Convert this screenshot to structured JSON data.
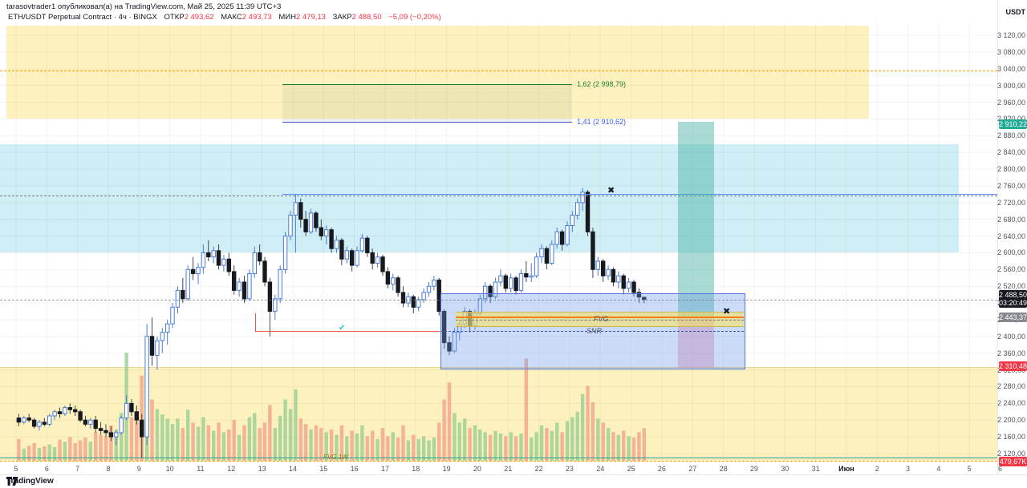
{
  "header": {
    "published": "tarasovtrader1 опубликовал(а) на TradingView.com, Май 25, 2025 11:39 UTC+3",
    "legend": {
      "symbol_line": "ETH/USDT Perpetual Contract · 4ч · BINGX",
      "open_label": "ОТКР",
      "open": "2 493,62",
      "high_label": "МАКС",
      "high": "2 493,73",
      "low_label": "МИН",
      "low": "2 479,13",
      "close_label": "ЗАКР",
      "close": "2 488,50",
      "change": "−5,09 (−0,20%)"
    }
  },
  "price_axis": {
    "currency": "USDT",
    "ticks": [
      {
        "p": 3120,
        "label": "3 120,00"
      },
      {
        "p": 3080,
        "label": "3 080,00"
      },
      {
        "p": 3040,
        "label": "3 040,00"
      },
      {
        "p": 3000,
        "label": "3 000,00"
      },
      {
        "p": 2960,
        "label": "2 960,00"
      },
      {
        "p": 2920,
        "label": "2 920,00"
      },
      {
        "p": 2880,
        "label": "2 880,00"
      },
      {
        "p": 2840,
        "label": "2 840,00"
      },
      {
        "p": 2800,
        "label": "2 800,00"
      },
      {
        "p": 2760,
        "label": "2 760,00"
      },
      {
        "p": 2720,
        "label": "2 720,00"
      },
      {
        "p": 2680,
        "label": "2 680,00"
      },
      {
        "p": 2640,
        "label": "2 640,00"
      },
      {
        "p": 2600,
        "label": "2 600,00"
      },
      {
        "p": 2560,
        "label": "2 560,00"
      },
      {
        "p": 2520,
        "label": "2 520,00"
      },
      {
        "p": 2480,
        "label": "2 480,00"
      },
      {
        "p": 2440,
        "label": "2 440,00"
      },
      {
        "p": 2400,
        "label": "2 400,00"
      },
      {
        "p": 2360,
        "label": "2 360,00"
      },
      {
        "p": 2320,
        "label": "2 320,00"
      },
      {
        "p": 2280,
        "label": "2 280,00"
      },
      {
        "p": 2240,
        "label": "2 240,00"
      },
      {
        "p": 2200,
        "label": "2 200,00"
      },
      {
        "p": 2160,
        "label": "2 160,00"
      },
      {
        "p": 2120,
        "label": "2 120,00"
      }
    ],
    "badges": [
      {
        "label": "2 910,22",
        "bg": "#22ab94",
        "y": 149
      },
      {
        "label": "2 488,50",
        "sub": "03:20:49",
        "bg": "#15181e",
        "y": 362
      },
      {
        "label": "2 443,37",
        "bg": "#85888f",
        "y": 390
      },
      {
        "label": "2 310,48",
        "bg": "#f23645",
        "y": 451
      },
      {
        "label": "479,67K",
        "bg": "#f23645",
        "y": 570
      }
    ]
  },
  "time_axis": {
    "labels": [
      "5",
      "6",
      "7",
      "8",
      "9",
      "10",
      "11",
      "12",
      "13",
      "14",
      "15",
      "16",
      "17",
      "18",
      "19",
      "20",
      "21",
      "22",
      "23",
      "24",
      "25",
      "26",
      "27",
      "28",
      "29",
      "30",
      "31",
      "Июн",
      "2",
      "3",
      "4",
      "5",
      "6"
    ]
  },
  "drawings": {
    "fib_162": "1,62 (2 998,79)",
    "fib_141": "1,41 (2 910,62)",
    "fvg": "FVG",
    "snr": "SNR",
    "fvg1w": "FVG 1W",
    "cross": "✖",
    "check": "✔"
  },
  "footer": {
    "brand": "TradingView"
  },
  "colors": {
    "up_body": "#ffffff",
    "up_border": "#4a7bd5",
    "down_body": "#17191f",
    "down_wick": "#42464e",
    "vol_up": "#97cf94",
    "vol_down": "#f2a38d",
    "zone_yellow": "rgba(250,225,110,0.45)",
    "zone_cyan": "rgba(140,215,230,0.42)",
    "box_blue": "rgba(110,155,235,0.35)",
    "box_border": "#5577dd",
    "band_green": "rgba(64,175,160,0.45)",
    "band_pink": "rgba(230,120,160,0.42)",
    "fvg_fill": "rgba(252,228,88,0.55)",
    "fvg_edge": "#cdb64d",
    "fvg_center": "#f57f17",
    "snr_dash": "#3f51b5",
    "red_line": "#ef5350",
    "teal_line": "#2a9d8f",
    "orange_dash": "#f59b00",
    "gray_dash": "#787b86",
    "tp_badge": "#22ab94",
    "entry_badge": "#85888f",
    "sl_badge": "#f23645",
    "last_badge": "#15181e"
  },
  "chart_data": {
    "type": "candlestick",
    "title": "ETH/USDT Perpetual Contract",
    "interval": "4h",
    "exchange": "BINGX",
    "x_range": [
      "Май 5 2025",
      "Июн 6 2025"
    ],
    "y_range_usdt": [
      2120,
      3120
    ],
    "grid": true,
    "last": {
      "open": 2493.62,
      "high": 2493.73,
      "low": 2479.13,
      "close": 2488.5,
      "change": "-5,09 (-0,20%)",
      "countdown": "03:20:49"
    },
    "annotations": {
      "fib_extension_162": 2998.79,
      "fib_extension_141": 2910.62,
      "take_profit": 2910.22,
      "entry_fvg": 2443.37,
      "stop_loss": 2310.48,
      "last_volume": "479,67K",
      "supply_zone_cyan_usdt": [
        2600,
        2850
      ],
      "yellow_zone_top_usdt": [
        2925,
        3140
      ],
      "yellow_zone_bottom_usdt": [
        2105,
        2330
      ],
      "snr_box_usdt": [
        2325,
        2500
      ],
      "labels": [
        "FVG",
        "SNR",
        "FVG 1W"
      ]
    },
    "candles_ohlcv": [
      [
        2205,
        2215,
        2185,
        2195,
        320
      ],
      [
        2195,
        2210,
        2190,
        2205,
        180
      ],
      [
        2205,
        2215,
        2195,
        2200,
        220
      ],
      [
        2200,
        2205,
        2180,
        2185,
        260
      ],
      [
        2185,
        2200,
        2175,
        2195,
        190
      ],
      [
        2195,
        2205,
        2185,
        2190,
        210
      ],
      [
        2190,
        2215,
        2185,
        2210,
        240
      ],
      [
        2210,
        2225,
        2200,
        2220,
        200
      ],
      [
        2220,
        2230,
        2205,
        2215,
        310
      ],
      [
        2215,
        2235,
        2210,
        2230,
        280
      ],
      [
        2230,
        2240,
        2215,
        2225,
        350
      ],
      [
        2225,
        2235,
        2210,
        2220,
        260
      ],
      [
        2220,
        2225,
        2195,
        2200,
        300
      ],
      [
        2200,
        2210,
        2185,
        2190,
        340
      ],
      [
        2190,
        2205,
        2180,
        2200,
        280
      ],
      [
        2200,
        2210,
        2170,
        2180,
        420
      ],
      [
        2180,
        2195,
        2165,
        2175,
        380
      ],
      [
        2175,
        2190,
        2160,
        2170,
        360
      ],
      [
        2170,
        2185,
        2150,
        2160,
        520
      ],
      [
        2160,
        2175,
        2140,
        2170,
        460
      ],
      [
        2170,
        2210,
        2165,
        2205,
        700
      ],
      [
        2205,
        2260,
        2200,
        2240,
        1588
      ],
      [
        2240,
        2250,
        2210,
        2220,
        640
      ],
      [
        2220,
        2235,
        2190,
        2200,
        580
      ],
      [
        2200,
        2215,
        2110,
        2160,
        1250
      ],
      [
        2160,
        2430,
        2140,
        2400,
        1400
      ],
      [
        2400,
        2445,
        2330,
        2355,
        900
      ],
      [
        2355,
        2400,
        2320,
        2390,
        760
      ],
      [
        2390,
        2420,
        2360,
        2410,
        680
      ],
      [
        2410,
        2440,
        2380,
        2430,
        620
      ],
      [
        2430,
        2480,
        2420,
        2470,
        540
      ],
      [
        2470,
        2520,
        2455,
        2510,
        620
      ],
      [
        2510,
        2540,
        2480,
        2490,
        480
      ],
      [
        2490,
        2570,
        2485,
        2560,
        750
      ],
      [
        2560,
        2590,
        2535,
        2550,
        560
      ],
      [
        2550,
        2575,
        2525,
        2565,
        500
      ],
      [
        2565,
        2620,
        2550,
        2600,
        640
      ],
      [
        2600,
        2630,
        2580,
        2590,
        520
      ],
      [
        2590,
        2615,
        2575,
        2605,
        440
      ],
      [
        2605,
        2620,
        2560,
        2570,
        560
      ],
      [
        2570,
        2595,
        2555,
        2585,
        420
      ],
      [
        2585,
        2600,
        2545,
        2555,
        460
      ],
      [
        2555,
        2570,
        2500,
        2510,
        600
      ],
      [
        2510,
        2540,
        2495,
        2530,
        380
      ],
      [
        2530,
        2545,
        2480,
        2490,
        520
      ],
      [
        2490,
        2560,
        2485,
        2550,
        640
      ],
      [
        2550,
        2615,
        2540,
        2600,
        700
      ],
      [
        2600,
        2620,
        2570,
        2580,
        480
      ],
      [
        2580,
        2590,
        2520,
        2530,
        560
      ],
      [
        2530,
        2540,
        2400,
        2460,
        820
      ],
      [
        2460,
        2500,
        2440,
        2490,
        480
      ],
      [
        2490,
        2570,
        2480,
        2560,
        660
      ],
      [
        2560,
        2650,
        2550,
        2640,
        900
      ],
      [
        2640,
        2700,
        2630,
        2690,
        760
      ],
      [
        2690,
        2740,
        2600,
        2720,
        1050
      ],
      [
        2720,
        2730,
        2660,
        2680,
        620
      ],
      [
        2680,
        2700,
        2640,
        2650,
        540
      ],
      [
        2650,
        2705,
        2645,
        2695,
        460
      ],
      [
        2695,
        2700,
        2650,
        2660,
        520
      ],
      [
        2660,
        2680,
        2630,
        2640,
        480
      ],
      [
        2640,
        2665,
        2620,
        2655,
        420
      ],
      [
        2655,
        2660,
        2600,
        2610,
        460
      ],
      [
        2610,
        2640,
        2600,
        2630,
        380
      ],
      [
        2630,
        2635,
        2570,
        2585,
        520
      ],
      [
        2585,
        2615,
        2575,
        2605,
        360
      ],
      [
        2605,
        2610,
        2555,
        2570,
        440
      ],
      [
        2570,
        2615,
        2565,
        2605,
        400
      ],
      [
        2605,
        2645,
        2600,
        2635,
        520
      ],
      [
        2635,
        2640,
        2590,
        2600,
        360
      ],
      [
        2600,
        2610,
        2560,
        2575,
        440
      ],
      [
        2575,
        2600,
        2565,
        2590,
        320
      ],
      [
        2590,
        2595,
        2545,
        2555,
        480
      ],
      [
        2555,
        2565,
        2515,
        2525,
        360
      ],
      [
        2525,
        2550,
        2510,
        2540,
        420
      ],
      [
        2540,
        2545,
        2495,
        2505,
        340
      ],
      [
        2505,
        2520,
        2470,
        2480,
        520
      ],
      [
        2480,
        2505,
        2470,
        2495,
        300
      ],
      [
        2495,
        2500,
        2455,
        2470,
        380
      ],
      [
        2470,
        2495,
        2460,
        2488,
        320
      ],
      [
        2488,
        2515,
        2480,
        2505,
        360
      ],
      [
        2505,
        2530,
        2495,
        2520,
        300
      ],
      [
        2520,
        2545,
        2510,
        2535,
        340
      ],
      [
        2535,
        2540,
        2450,
        2460,
        560
      ],
      [
        2460,
        2465,
        2370,
        2385,
        900
      ],
      [
        2385,
        2400,
        2355,
        2365,
        1150
      ],
      [
        2365,
        2420,
        2360,
        2410,
        700
      ],
      [
        2410,
        2440,
        2390,
        2430,
        560
      ],
      [
        2430,
        2470,
        2420,
        2460,
        620
      ],
      [
        2460,
        2465,
        2410,
        2425,
        480
      ],
      [
        2425,
        2465,
        2415,
        2455,
        520
      ],
      [
        2455,
        2500,
        2450,
        2490,
        460
      ],
      [
        2490,
        2530,
        2480,
        2520,
        420
      ],
      [
        2520,
        2525,
        2480,
        2495,
        380
      ],
      [
        2495,
        2540,
        2490,
        2530,
        440
      ],
      [
        2530,
        2560,
        2520,
        2545,
        400
      ],
      [
        2545,
        2550,
        2505,
        2515,
        360
      ],
      [
        2515,
        2550,
        2505,
        2540,
        420
      ],
      [
        2540,
        2545,
        2500,
        2510,
        360
      ],
      [
        2510,
        2560,
        2505,
        2550,
        400
      ],
      [
        2550,
        2580,
        2530,
        2542,
        1500
      ],
      [
        2542,
        2575,
        2530,
        2545,
        340
      ],
      [
        2545,
        2600,
        2540,
        2590,
        420
      ],
      [
        2590,
        2620,
        2575,
        2610,
        520
      ],
      [
        2610,
        2615,
        2560,
        2575,
        480
      ],
      [
        2575,
        2630,
        2570,
        2620,
        440
      ],
      [
        2620,
        2660,
        2610,
        2650,
        560
      ],
      [
        2650,
        2655,
        2605,
        2620,
        420
      ],
      [
        2620,
        2675,
        2615,
        2665,
        580
      ],
      [
        2665,
        2700,
        2650,
        2690,
        640
      ],
      [
        2690,
        2730,
        2680,
        2720,
        720
      ],
      [
        2720,
        2755,
        2700,
        2745,
        980
      ],
      [
        2745,
        2750,
        2640,
        2650,
        1100
      ],
      [
        2650,
        2660,
        2540,
        2560,
        860
      ],
      [
        2560,
        2590,
        2545,
        2580,
        620
      ],
      [
        2580,
        2585,
        2530,
        2545,
        560
      ],
      [
        2545,
        2570,
        2535,
        2560,
        480
      ],
      [
        2560,
        2565,
        2520,
        2530,
        420
      ],
      [
        2530,
        2555,
        2515,
        2545,
        380
      ],
      [
        2545,
        2550,
        2500,
        2515,
        440
      ],
      [
        2515,
        2540,
        2505,
        2530,
        360
      ],
      [
        2530,
        2535,
        2495,
        2505,
        340
      ],
      [
        2505,
        2515,
        2480,
        2494,
        420
      ],
      [
        2493.62,
        2493.73,
        2479.13,
        2488.5,
        479.67
      ]
    ]
  }
}
